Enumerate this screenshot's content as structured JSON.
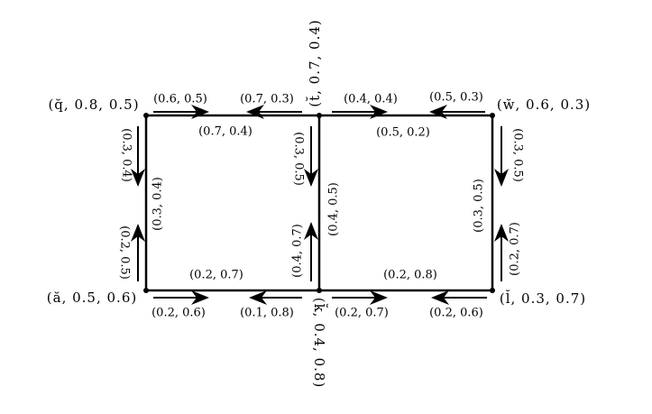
{
  "nodes": [
    {
      "label": "(q̆, 0.8, 0.5)"
    },
    {
      "label": "(t̆, 0.7, 0.4)"
    },
    {
      "label": "(w̆, 0.6, 0.3)"
    },
    {
      "label": "(ă, 0.5, 0.6)"
    },
    {
      "label": "(k̆, 0.4, 0.8)"
    },
    {
      "label": "(l̆, 0.3, 0.7)"
    }
  ],
  "edge_labels": [
    "(0.6, 0.5)",
    "(0.7, 0.3)",
    "(0.7, 0.4)",
    "(0.4, 0.4)",
    "(0.5, 0.3)",
    "(0.5, 0.2)",
    "(0.3, 0.4)",
    "(0.3, 0.4)",
    "(0.2, 0.5)",
    "(0.3, 0.5)",
    "(0.4, 0.5)",
    "(0.4, 0.7)",
    "(0.3, 0.5)",
    "(0.3, 0.5)",
    "(0.2, 0.7)",
    "(0.2, 0.7)",
    "(0.2, 0.6)",
    "(0.1, 0.8)",
    "(0.2, 0.8)",
    "(0.2, 0.7)",
    "(0.2, 0.6)"
  ]
}
